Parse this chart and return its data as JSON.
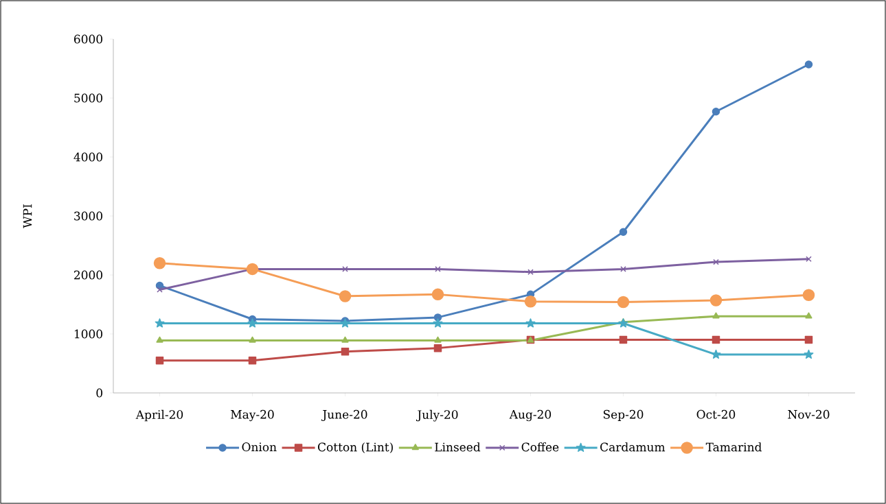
{
  "chart_data": {
    "type": "line",
    "ylabel": "WPI",
    "categories": [
      "April-20",
      "May-20",
      "June-20",
      "July-20",
      "Aug-20",
      "Sep-20",
      "Oct-20",
      "Nov-20"
    ],
    "series": [
      {
        "name": "Onion",
        "color": "#4a7ebb",
        "marker": "circle",
        "values": [
          1820,
          1250,
          1220,
          1280,
          1670,
          2730,
          4770,
          5570
        ]
      },
      {
        "name": "Cotton (Lint)",
        "color": "#be4b48",
        "marker": "square",
        "values": [
          550,
          550,
          700,
          760,
          900,
          900,
          900,
          900
        ]
      },
      {
        "name": "Linseed",
        "color": "#98b954",
        "marker": "triangle",
        "values": [
          890,
          890,
          890,
          890,
          890,
          1200,
          1300,
          1300
        ]
      },
      {
        "name": "Coffee",
        "color": "#7d60a0",
        "marker": "cross",
        "values": [
          1750,
          2100,
          2100,
          2100,
          2050,
          2100,
          2220,
          2270
        ]
      },
      {
        "name": "Cardamum",
        "color": "#46aac5",
        "marker": "star",
        "values": [
          1180,
          1180,
          1180,
          1180,
          1180,
          1180,
          650,
          650
        ]
      },
      {
        "name": "Tamarind",
        "color": "#f59d56",
        "marker": "circle",
        "values": [
          2200,
          2100,
          1640,
          1670,
          1550,
          1540,
          1570,
          1660
        ]
      }
    ],
    "ylim": [
      0,
      6000
    ],
    "yticks": [
      0,
      1000,
      2000,
      3000,
      4000,
      5000,
      6000
    ],
    "grid": false,
    "legend": "bottom",
    "line_style": "solid"
  }
}
